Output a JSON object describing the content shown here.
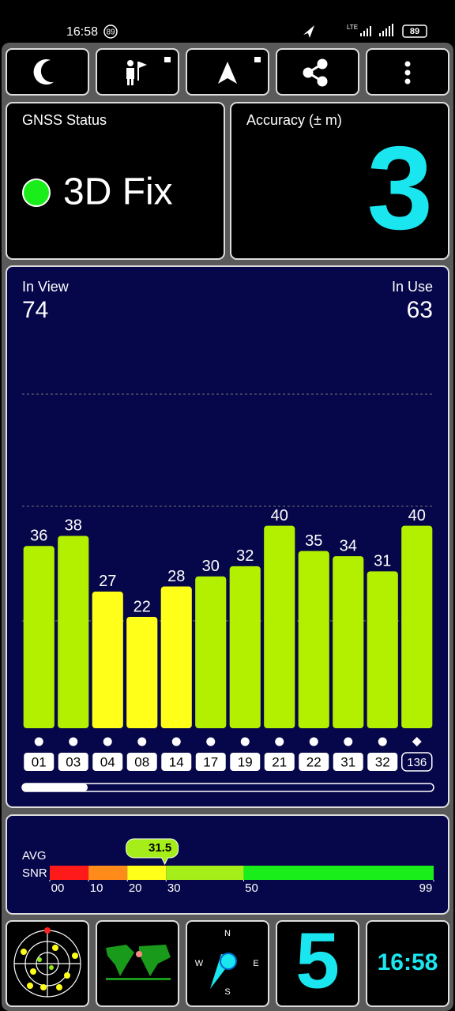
{
  "status_bar": {
    "time": "16:58",
    "badge": "89",
    "network": "LTE",
    "battery": "89"
  },
  "gnss_status": {
    "title": "GNSS Status",
    "fix": "3D Fix"
  },
  "accuracy": {
    "title": "Accuracy (± m)",
    "value": 3
  },
  "chart_data": {
    "type": "bar",
    "in_view_label": "In View",
    "in_view": 74,
    "in_use_label": "In Use",
    "in_use": 63,
    "categories": [
      "01",
      "03",
      "04",
      "08",
      "14",
      "17",
      "19",
      "21",
      "22",
      "31",
      "32",
      "136"
    ],
    "values": [
      36,
      38,
      27,
      22,
      28,
      30,
      32,
      40,
      35,
      34,
      31,
      40
    ],
    "colors": [
      "#b3f000",
      "#b3f000",
      "#ffff1a",
      "#ffff1a",
      "#ffff1a",
      "#b3f000",
      "#b3f000",
      "#b3f000",
      "#b3f000",
      "#b3f000",
      "#b3f000",
      "#b3f000"
    ],
    "ylim": [
      0,
      88
    ]
  },
  "snr": {
    "label": "AVG",
    "label2": "SNR",
    "average": 31.5,
    "scale": [
      {
        "value": 0,
        "label": "00"
      },
      10,
      20,
      30,
      50,
      99
    ],
    "band_colors": [
      "#ff1a1a",
      "#ff8c1a",
      "#ffff1a",
      "#a6ee1a",
      "#1aee1a"
    ]
  },
  "bottom": {
    "satellites": 5,
    "clock": "16:58",
    "compass": {
      "n": "N",
      "e": "E",
      "s": "S",
      "w": "W"
    }
  }
}
